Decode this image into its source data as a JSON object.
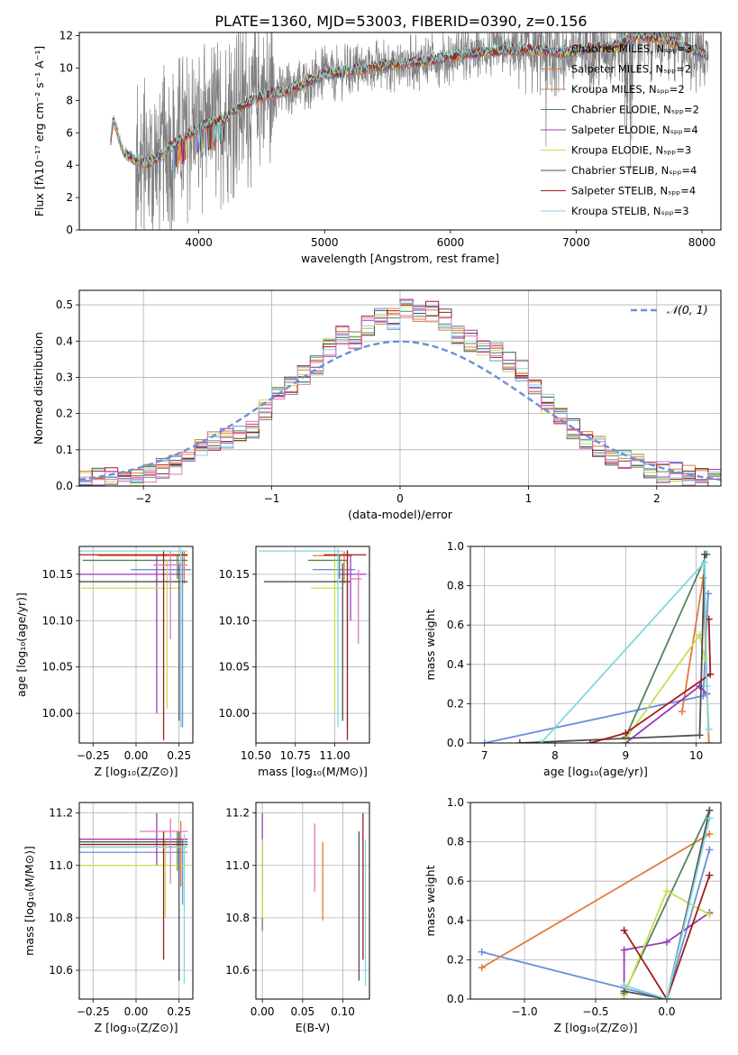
{
  "figure": {
    "title": "PLATE=1360, MJD=53003, FIBERID=0390, z=0.156"
  },
  "colors": {
    "Chabrier MILES": "#6a8fdb",
    "Salpeter MILES": "#e07b39",
    "Kroupa MILES": "#e07b39",
    "Chabrier ELODIE": "#55835a",
    "Salpeter ELODIE": "#9b3cb8",
    "Kroupa ELODIE": "#c8df52",
    "Chabrier STELIB": "#4f4f4f",
    "Salpeter STELIB": "#a01c1c",
    "Kroupa STELIB": "#80d8e0",
    "pink": "#e377c2",
    "data": "#808080",
    "normal": "#6a8fdb"
  },
  "chart_data": [
    {
      "id": "spectrum",
      "type": "line",
      "xlabel": "wavelength [Angstrom, rest frame]",
      "ylabel": "Flux [fλ10⁻¹⁷ erg cm⁻² s⁻¹ A⁻¹]",
      "xlim": [
        3050,
        8150
      ],
      "ylim": [
        0,
        12.2
      ],
      "xticks": [
        "4000",
        "5000",
        "6000",
        "7000",
        "8000"
      ],
      "yticks": [
        "0",
        "2",
        "4",
        "6",
        "8",
        "10",
        "12"
      ],
      "legend_position": "top-right",
      "legend": [
        "Chabrier MILES, Nₛₚₚ=3",
        "Salpeter MILES, Nₛₚₚ=2",
        "Kroupa MILES, Nₛₚₚ=2",
        "Chabrier ELODIE, Nₛₚₚ=2",
        "Salpeter ELODIE, Nₛₚₚ=4",
        "Kroupa ELODIE, Nₛₚₚ=3",
        "Chabrier STELIB, Nₛₚₚ=4",
        "Salpeter STELIB, Nₛₚₚ=4",
        "Kroupa STELIB, Nₛₚₚ=3"
      ],
      "model_continuum": {
        "x": [
          3300,
          3320,
          3400,
          3500,
          3600,
          3700,
          3800,
          3900,
          4000,
          4100,
          4200,
          4300,
          4400,
          4500,
          4700,
          5000,
          5200,
          5500,
          5700,
          6000,
          6300,
          6500,
          6700,
          6900,
          7100,
          7300,
          7500,
          7700,
          7900,
          8000,
          8100
        ],
        "y": [
          5.5,
          6.9,
          4.8,
          4.3,
          4.1,
          4.6,
          5.3,
          5.8,
          6.3,
          6.6,
          6.8,
          7.5,
          7.9,
          8.3,
          8.6,
          9.6,
          9.8,
          10.2,
          10.3,
          10.7,
          11.0,
          11.1,
          11.1,
          10.9,
          11.2,
          11.3,
          12.0,
          11.8,
          11.2,
          10.9,
          10.7
        ]
      }
    },
    {
      "id": "residuals",
      "type": "histogram",
      "xlabel": "(data-model)/error",
      "ylabel": "Normed distribution",
      "xlim": [
        -2.5,
        2.5
      ],
      "ylim": [
        0,
        0.54
      ],
      "xticks": [
        "−2",
        "−1",
        "0",
        "1",
        "2"
      ],
      "yticks": [
        "0.0",
        "0.1",
        "0.2",
        "0.3",
        "0.4",
        "0.5"
      ],
      "legend_position": "top-right",
      "legend": [
        "𝒩(0, 1)"
      ],
      "bin_width": 0.1,
      "bin_start": -2.5,
      "reference_values": [
        0.015,
        0.02,
        0.025,
        0.02,
        0.03,
        0.04,
        0.05,
        0.06,
        0.09,
        0.11,
        0.12,
        0.13,
        0.15,
        0.16,
        0.21,
        0.25,
        0.28,
        0.31,
        0.33,
        0.38,
        0.42,
        0.4,
        0.44,
        0.47,
        0.46,
        0.49,
        0.47,
        0.48,
        0.46,
        0.42,
        0.4,
        0.38,
        0.37,
        0.34,
        0.32,
        0.28,
        0.23,
        0.19,
        0.16,
        0.13,
        0.11,
        0.08,
        0.07,
        0.06,
        0.05,
        0.04,
        0.04,
        0.03,
        0.025,
        0.02
      ]
    },
    {
      "id": "age-vs-Z",
      "type": "scatter",
      "xlabel": "Z [log₁₀(Z/Z⊙)]",
      "ylabel": "age  [log₁₀(age/yr)]",
      "xlim": [
        -0.33,
        0.33
      ],
      "ylim": [
        9.968,
        10.18
      ],
      "xticks": [
        "−0.25",
        "0.00",
        "0.25"
      ],
      "yticks": [
        "10.00",
        "10.05",
        "10.10",
        "10.15"
      ],
      "points": [
        {
          "c": "#6a8fdb",
          "x": 0.27,
          "y": 10.155,
          "xerr": [
            0.3,
            0.05
          ],
          "yerr": [
            0.17,
            0.02
          ]
        },
        {
          "c": "#e07b39",
          "x": 0.28,
          "y": 10.17,
          "xerr": [
            0.5,
            0.02
          ],
          "yerr": [
            0.03,
            0.005
          ]
        },
        {
          "c": "#55835a",
          "x": 0.24,
          "y": 10.165,
          "xerr": [
            0.55,
            0.06
          ],
          "yerr": [
            0.02,
            0.005
          ]
        },
        {
          "c": "#9b3cb8",
          "x": 0.12,
          "y": 10.15,
          "xerr": [
            0.45,
            0.15
          ],
          "yerr": [
            0.15,
            0.02
          ]
        },
        {
          "c": "#c8df52",
          "x": 0.18,
          "y": 10.135,
          "xerr": [
            0.5,
            0.1
          ],
          "yerr": [
            0.13,
            0.03
          ]
        },
        {
          "c": "#4f4f4f",
          "x": 0.25,
          "y": 10.142,
          "xerr": [
            0.6,
            0.05
          ],
          "yerr": [
            0.15,
            0.02
          ]
        },
        {
          "c": "#a01c1c",
          "x": 0.16,
          "y": 10.171,
          "xerr": [
            0.5,
            0.14
          ],
          "yerr": [
            0.2,
            0.005
          ]
        },
        {
          "c": "#80d8e0",
          "x": 0.26,
          "y": 10.175,
          "xerr": [
            0.6,
            0.04
          ],
          "yerr": [
            0.19,
            0.003
          ]
        },
        {
          "c": "#e377c2",
          "x": 0.2,
          "y": 10.16,
          "xerr": [
            0.1,
            0.1
          ],
          "yerr": [
            0.08,
            0.015
          ]
        }
      ]
    },
    {
      "id": "age-vs-mass",
      "type": "scatter",
      "xlabel": "mass [log₁₀(M/M⊙)]",
      "xlim": [
        10.5,
        11.22
      ],
      "ylim": [
        9.968,
        10.18
      ],
      "xticks": [
        "10.50",
        "10.75",
        "11.00"
      ],
      "yticks": [
        "10.00",
        "10.05",
        "10.10",
        "10.15"
      ],
      "points": [
        {
          "c": "#6a8fdb",
          "x": 11.08,
          "y": 10.155,
          "xerr": [
            0.22,
            0.05
          ],
          "yerr": [
            0.17,
            0.02
          ]
        },
        {
          "c": "#e07b39",
          "x": 11.06,
          "y": 10.17,
          "xerr": [
            0.2,
            0.05
          ],
          "yerr": [
            0.03,
            0.005
          ]
        },
        {
          "c": "#55835a",
          "x": 11.03,
          "y": 10.165,
          "xerr": [
            0.2,
            0.05
          ],
          "yerr": [
            0.02,
            0.005
          ]
        },
        {
          "c": "#9b3cb8",
          "x": 11.1,
          "y": 10.15,
          "xerr": [
            0.08,
            0.1
          ],
          "yerr": [
            0.05,
            0.02
          ]
        },
        {
          "c": "#c8df52",
          "x": 11.0,
          "y": 10.135,
          "xerr": [
            0.15,
            0.05
          ],
          "yerr": [
            0.13,
            0.03
          ]
        },
        {
          "c": "#4f4f4f",
          "x": 11.05,
          "y": 10.142,
          "xerr": [
            0.5,
            0.05
          ],
          "yerr": [
            0.15,
            0.02
          ]
        },
        {
          "c": "#a01c1c",
          "x": 11.08,
          "y": 10.171,
          "xerr": [
            0.15,
            0.12
          ],
          "yerr": [
            0.2,
            0.005
          ]
        },
        {
          "c": "#80d8e0",
          "x": 11.02,
          "y": 10.175,
          "xerr": [
            0.5,
            0.03
          ],
          "yerr": [
            0.19,
            0.003
          ]
        },
        {
          "c": "#e377c2",
          "x": 11.15,
          "y": 10.145,
          "xerr": [
            0.05,
            0.02
          ],
          "yerr": [
            0.07,
            0.01
          ]
        }
      ]
    },
    {
      "id": "weight-vs-age",
      "type": "line",
      "xlabel": "age  [log₁₀(age/yr)]",
      "ylabel": "mass weight",
      "xlim": [
        6.8,
        10.35
      ],
      "ylim": [
        0,
        1.0
      ],
      "xticks": [
        "7",
        "8",
        "9",
        "10"
      ],
      "yticks": [
        "0.0",
        "0.2",
        "0.4",
        "0.6",
        "0.8",
        "1.0"
      ],
      "series": [
        {
          "c": "#6a8fdb",
          "x": [
            7.0,
            10.1,
            10.17
          ],
          "y": [
            0.0,
            0.24,
            0.76
          ]
        },
        {
          "c": "#e07b39",
          "x": [
            9.8,
            10.1,
            10.18
          ],
          "y": [
            0.16,
            0.84,
            0.0
          ]
        },
        {
          "c": "#55835a",
          "x": [
            9.0,
            10.15
          ],
          "y": [
            0.03,
            0.96
          ]
        },
        {
          "c": "#9b3cb8",
          "x": [
            9.0,
            10.05,
            10.15
          ],
          "y": [
            0.0,
            0.29,
            0.25
          ]
        },
        {
          "c": "#c8df52",
          "x": [
            9.0,
            10.05,
            10.12
          ],
          "y": [
            0.02,
            0.55,
            0.43
          ]
        },
        {
          "c": "#4f4f4f",
          "x": [
            7.5,
            10.05,
            10.12
          ],
          "y": [
            0.0,
            0.04,
            0.96
          ]
        },
        {
          "c": "#a01c1c",
          "x": [
            8.5,
            9.0,
            10.2,
            10.18
          ],
          "y": [
            0.0,
            0.05,
            0.35,
            0.63
          ]
        },
        {
          "c": "#80d8e0",
          "x": [
            7.8,
            10.12,
            10.15,
            10.18
          ],
          "y": [
            0.0,
            0.92,
            0.29,
            0.07
          ]
        }
      ]
    },
    {
      "id": "mass-vs-Z",
      "type": "scatter",
      "xlabel": "Z [log₁₀(Z/Z⊙)]",
      "ylabel": "mass [log₁₀(M/M⊙)]",
      "xlim": [
        -0.33,
        0.33
      ],
      "ylim": [
        10.49,
        11.24
      ],
      "xticks": [
        "−0.25",
        "0.00",
        "0.25"
      ],
      "yticks": [
        "10.6",
        "10.8",
        "11.0",
        "11.2"
      ],
      "points": [
        {
          "c": "#6a8fdb",
          "x": 0.27,
          "y": 11.05,
          "xerr": [
            0.6,
            0.03
          ],
          "yerr": [
            0.2,
            0.05
          ]
        },
        {
          "c": "#e07b39",
          "x": 0.26,
          "y": 11.07,
          "xerr": [
            0.6,
            0.03
          ],
          "yerr": [
            0.15,
            0.1
          ]
        },
        {
          "c": "#55835a",
          "x": 0.24,
          "y": 11.08,
          "xerr": [
            0.55,
            0.06
          ],
          "yerr": [
            0.1,
            0.05
          ]
        },
        {
          "c": "#9b3cb8",
          "x": 0.12,
          "y": 11.1,
          "xerr": [
            0.45,
            0.18
          ],
          "yerr": [
            0.1,
            0.1
          ]
        },
        {
          "c": "#c8df52",
          "x": 0.17,
          "y": 11.0,
          "xerr": [
            0.5,
            0.13
          ],
          "yerr": [
            0.2,
            0.1
          ]
        },
        {
          "c": "#4f4f4f",
          "x": 0.25,
          "y": 11.09,
          "xerr": [
            0.6,
            0.05
          ],
          "yerr": [
            0.53,
            0.04
          ]
        },
        {
          "c": "#a01c1c",
          "x": 0.16,
          "y": 11.08,
          "xerr": [
            0.5,
            0.14
          ],
          "yerr": [
            0.44,
            0.05
          ]
        },
        {
          "c": "#80d8e0",
          "x": 0.28,
          "y": 11.07,
          "xerr": [
            0.6,
            0.02
          ],
          "yerr": [
            0.52,
            0.05
          ]
        },
        {
          "c": "#e377c2",
          "x": 0.2,
          "y": 11.13,
          "xerr": [
            0.18,
            0.1
          ],
          "yerr": [
            0.2,
            0.05
          ]
        }
      ]
    },
    {
      "id": "mass-vs-EBV",
      "type": "scatter",
      "xlabel": "E(B-V)",
      "xlim": [
        -0.008,
        0.133
      ],
      "ylim": [
        10.49,
        11.24
      ],
      "xticks": [
        "0.00",
        "0.05",
        "0.10"
      ],
      "yticks": [
        "10.6",
        "10.8",
        "11.0",
        "11.2"
      ],
      "points": [
        {
          "c": "#6a8fdb",
          "x": 0.0,
          "y": 11.05,
          "yerr": [
            0.1,
            0.05
          ]
        },
        {
          "c": "#e07b39",
          "x": 0.075,
          "y": 10.95,
          "yerr": [
            0.16,
            0.14
          ]
        },
        {
          "c": "#55835a",
          "x": 0.0,
          "y": 11.0,
          "yerr": [
            0.25,
            0.1
          ]
        },
        {
          "c": "#9b3cb8",
          "x": 0.0,
          "y": 11.1,
          "yerr": [
            0.2,
            0.1
          ]
        },
        {
          "c": "#c8df52",
          "x": 0.0,
          "y": 10.95,
          "yerr": [
            0.15,
            0.15
          ]
        },
        {
          "c": "#4f4f4f",
          "x": 0.12,
          "y": 10.85,
          "yerr": [
            0.29,
            0.28
          ]
        },
        {
          "c": "#a01c1c",
          "x": 0.125,
          "y": 10.9,
          "yerr": [
            0.26,
            0.3
          ]
        },
        {
          "c": "#80d8e0",
          "x": 0.128,
          "y": 10.8,
          "yerr": [
            0.26,
            0.3
          ]
        },
        {
          "c": "#e377c2",
          "x": 0.065,
          "y": 11.06,
          "yerr": [
            0.16,
            0.1
          ]
        }
      ]
    },
    {
      "id": "weight-vs-Z",
      "type": "line",
      "xlabel": "Z [log₁₀(Z/Z⊙)]",
      "ylabel": "mass weight",
      "xlim": [
        -1.38,
        0.38
      ],
      "ylim": [
        0,
        1.0
      ],
      "xticks": [
        "−1.0",
        "−0.5",
        "0.0"
      ],
      "yticks": [
        "0.0",
        "0.2",
        "0.4",
        "0.6",
        "0.8",
        "1.0"
      ],
      "series": [
        {
          "c": "#6a8fdb",
          "x": [
            -1.3,
            0.0,
            0.3
          ],
          "y": [
            0.24,
            0.0,
            0.76
          ]
        },
        {
          "c": "#e07b39",
          "x": [
            -1.3,
            0.3
          ],
          "y": [
            0.16,
            0.84
          ]
        },
        {
          "c": "#55835a",
          "x": [
            -0.3,
            0.3
          ],
          "y": [
            0.03,
            0.96
          ]
        },
        {
          "c": "#9b3cb8",
          "x": [
            -0.3,
            -0.3,
            0.0,
            0.3
          ],
          "y": [
            0.0,
            0.25,
            0.29,
            0.44
          ]
        },
        {
          "c": "#c8df52",
          "x": [
            -0.3,
            0.0,
            0.3
          ],
          "y": [
            0.02,
            0.55,
            0.43
          ]
        },
        {
          "c": "#4f4f4f",
          "x": [
            -0.3,
            0.0,
            0.3
          ],
          "y": [
            0.04,
            0.0,
            0.96
          ]
        },
        {
          "c": "#a01c1c",
          "x": [
            -0.3,
            0.0,
            0.3
          ],
          "y": [
            0.35,
            0.0,
            0.63
          ]
        },
        {
          "c": "#80d8e0",
          "x": [
            -0.3,
            0.0,
            0.3
          ],
          "y": [
            0.07,
            0.0,
            0.92
          ]
        }
      ]
    }
  ]
}
